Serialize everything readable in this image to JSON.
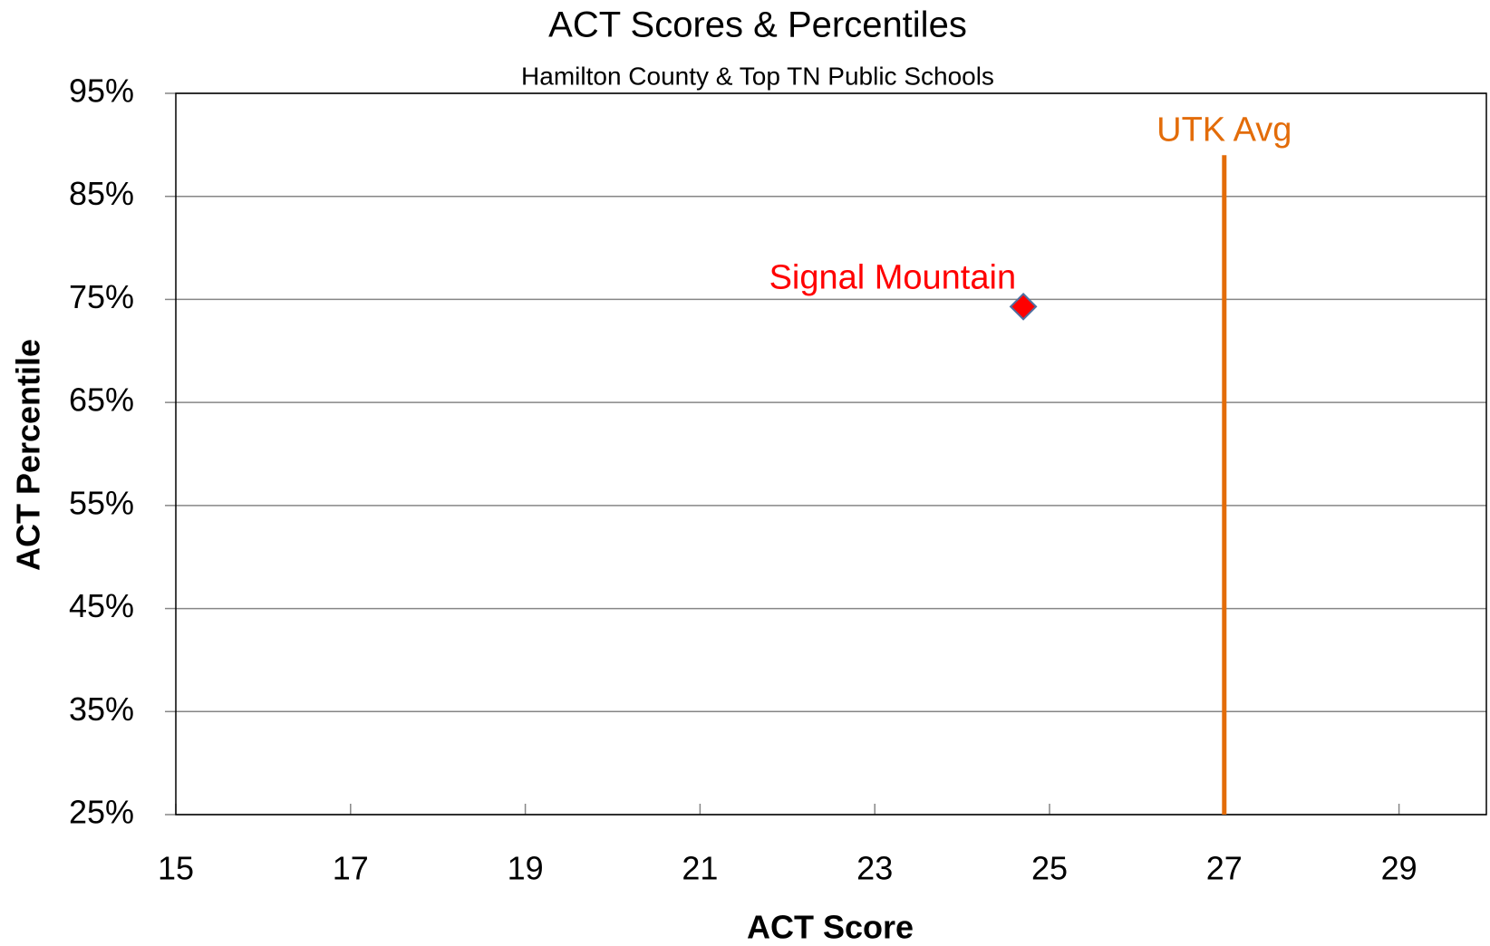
{
  "chart_data": {
    "type": "scatter",
    "title": "ACT Scores & Percentiles",
    "subtitle": "Hamilton County & Top TN Public Schools",
    "xlabel": "ACT Score",
    "ylabel": "ACT Percentile",
    "xlim": [
      15,
      30
    ],
    "xticks": [
      15,
      17,
      19,
      21,
      23,
      25,
      27,
      29
    ],
    "ylim": [
      25,
      95
    ],
    "yticks": [
      {
        "value": 25,
        "label": "25%"
      },
      {
        "value": 35,
        "label": "35%"
      },
      {
        "value": 45,
        "label": "45%"
      },
      {
        "value": 55,
        "label": "55%"
      },
      {
        "value": 65,
        "label": "65%"
      },
      {
        "value": 75,
        "label": "75%"
      },
      {
        "value": 85,
        "label": "85%"
      },
      {
        "value": 95,
        "label": "95%"
      }
    ],
    "grid": true,
    "series": [
      {
        "name": "Signal Mountain",
        "color": "#ff0000",
        "x": [
          24.7
        ],
        "values": [
          74.3
        ]
      }
    ],
    "reference_lines": [
      {
        "label": "UTK Avg",
        "x": 27,
        "ymax": 89,
        "color": "#e36c09"
      }
    ]
  }
}
